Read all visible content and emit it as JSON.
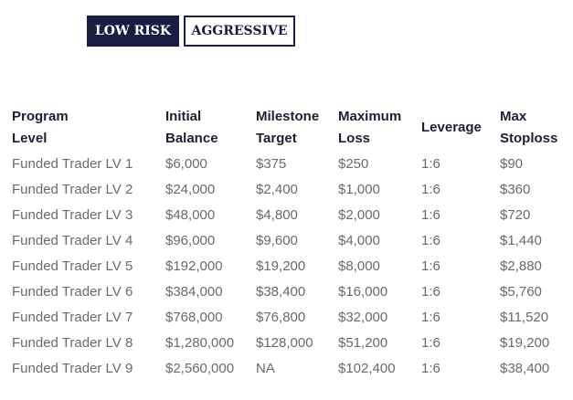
{
  "tabs": [
    {
      "label": "LOW RISK",
      "active": true
    },
    {
      "label": "AGGRESSIVE",
      "active": false
    }
  ],
  "colors": {
    "accent": "#1b1d40",
    "header_text": "#231d33",
    "body_text": "#6a6a6a"
  },
  "table": {
    "headers": [
      [
        "Program",
        "Level"
      ],
      [
        "Initial",
        "Balance"
      ],
      [
        "Milestone",
        "Target"
      ],
      [
        "Maximum",
        "Loss"
      ],
      [
        "Leverage"
      ],
      [
        "Max",
        "Stoploss"
      ]
    ],
    "rows": [
      [
        "Funded Trader LV 1",
        "$6,000",
        "$375",
        "$250",
        "1:6",
        "$90"
      ],
      [
        "Funded Trader LV 2",
        "$24,000",
        "$2,400",
        "$1,000",
        "1:6",
        "$360"
      ],
      [
        "Funded Trader LV 3",
        "$48,000",
        "$4,800",
        "$2,000",
        "1:6",
        "$720"
      ],
      [
        "Funded Trader LV 4",
        "$96,000",
        "$9,600",
        "$4,000",
        "1:6",
        "$1,440"
      ],
      [
        "Funded Trader LV 5",
        "$192,000",
        "$19,200",
        "$8,000",
        "1:6",
        "$2,880"
      ],
      [
        "Funded Trader LV 6",
        "$384,000",
        "$38,400",
        "$16,000",
        "1:6",
        "$5,760"
      ],
      [
        "Funded Trader LV 7",
        "$768,000",
        "$76,800",
        "$32,000",
        "1:6",
        "$11,520"
      ],
      [
        "Funded Trader LV 8",
        "$1,280,000",
        "$128,000",
        "$51,200",
        "1:6",
        "$19,200"
      ],
      [
        "Funded Trader LV 9",
        "$2,560,000",
        "NA",
        "$102,400",
        "1:6",
        "$38,400"
      ]
    ]
  }
}
